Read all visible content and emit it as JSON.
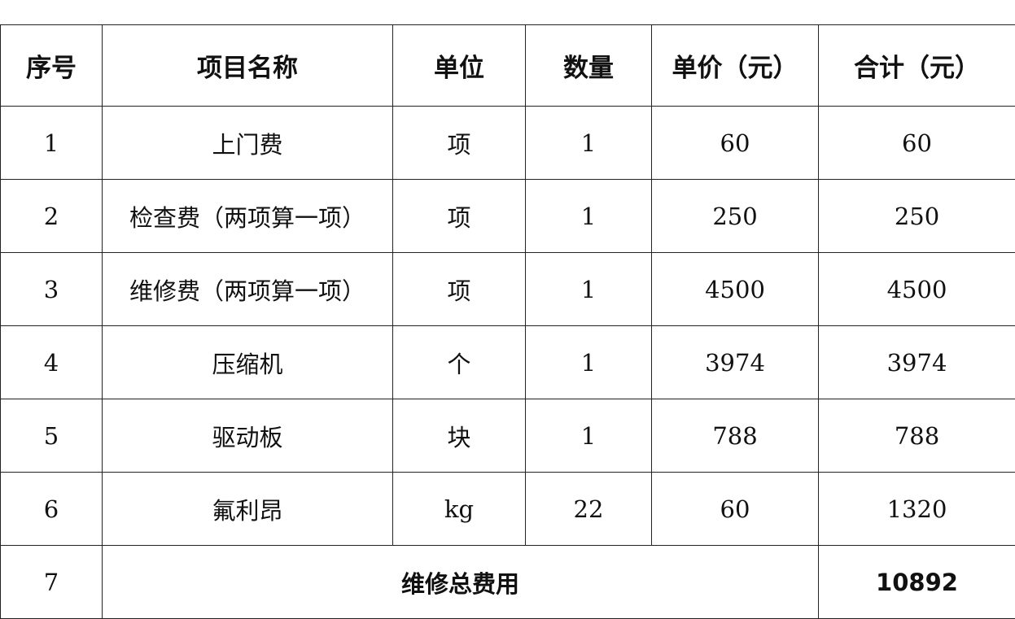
{
  "headers": [
    "序号",
    "项目名称",
    "单位",
    "数量",
    "单价（元）",
    "合计（元）"
  ],
  "rows": [
    [
      "1",
      "上门费",
      "项",
      "1",
      "60",
      "60"
    ],
    [
      "2",
      "检查费（两项算一项）",
      "项",
      "1",
      "250",
      "250"
    ],
    [
      "3",
      "维修费（两项算一项）",
      "项",
      "1",
      "4500",
      "4500"
    ],
    [
      "4",
      "压缩机",
      "个",
      "1",
      "3974",
      "3974"
    ],
    [
      "5",
      "驱动板",
      "块",
      "1",
      "788",
      "788"
    ],
    [
      "6",
      "氟利昂",
      "kg",
      "22",
      "60",
      "1320"
    ]
  ],
  "total": {
    "index": "7",
    "label": "维修总费用",
    "value": "10892"
  }
}
